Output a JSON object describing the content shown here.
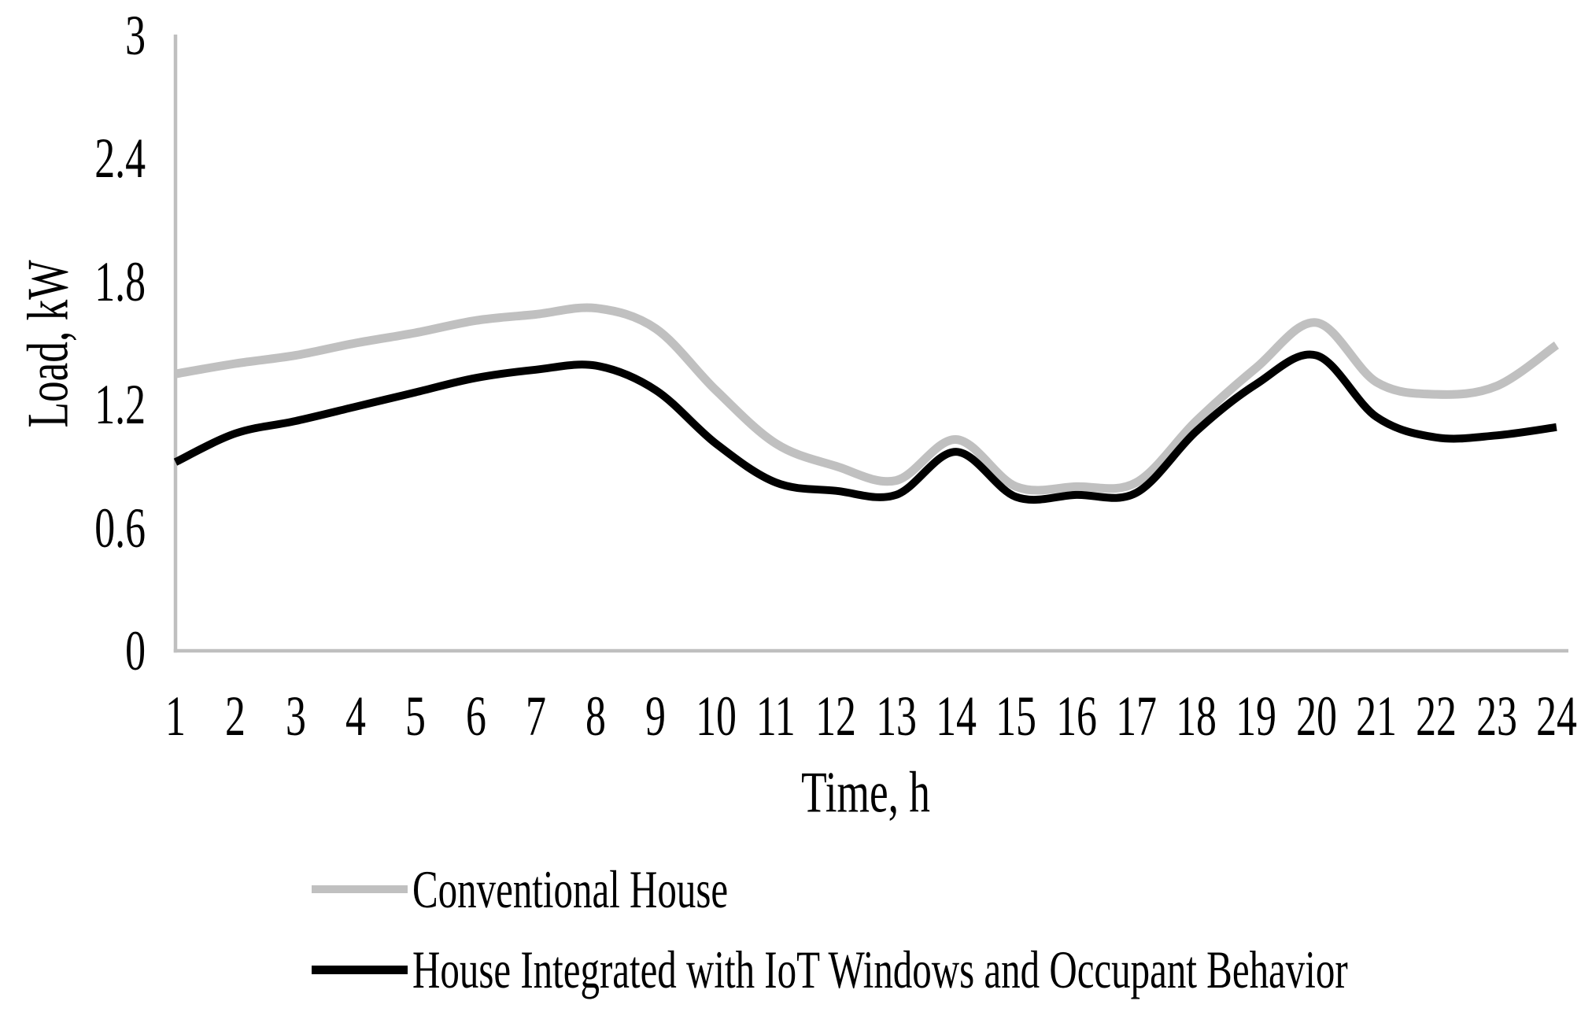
{
  "chart_data": {
    "type": "line",
    "title": "",
    "xlabel": "Time, h",
    "ylabel": "Load, kW",
    "x": [
      1,
      2,
      3,
      4,
      5,
      6,
      7,
      8,
      9,
      10,
      11,
      12,
      13,
      14,
      15,
      16,
      17,
      18,
      19,
      20,
      21,
      22,
      23,
      24
    ],
    "x_tick_labels": [
      "1",
      "2",
      "3",
      "4",
      "5",
      "6",
      "7",
      "8",
      "9",
      "10",
      "11",
      "12",
      "13",
      "14",
      "15",
      "16",
      "17",
      "18",
      "19",
      "20",
      "21",
      "22",
      "23",
      "24"
    ],
    "y_ticks": [
      0,
      0.6,
      1.2,
      1.8,
      2.4,
      3
    ],
    "y_tick_labels": [
      "0",
      "0.6",
      "1.2",
      "1.8",
      "2.4",
      "3"
    ],
    "xlim": [
      1,
      24
    ],
    "ylim": [
      0,
      3
    ],
    "grid": false,
    "tick_marks": false,
    "axis_color": "#bfbfbf",
    "text_color": "#000000",
    "background_color": "#ffffff",
    "legend_position": "bottom-left",
    "series": [
      {
        "name": "Conventional House",
        "color": "#c0c0c0",
        "line_width": 11,
        "values": [
          1.35,
          1.4,
          1.44,
          1.5,
          1.55,
          1.61,
          1.64,
          1.67,
          1.57,
          1.27,
          1.01,
          0.9,
          0.83,
          1.03,
          0.8,
          0.8,
          0.82,
          1.12,
          1.38,
          1.6,
          1.31,
          1.25,
          1.29,
          1.49
        ]
      },
      {
        "name": "House Integrated with IoT Windows and Occupant Behavior",
        "color": "#000000",
        "line_width": 10,
        "values": [
          0.92,
          1.06,
          1.12,
          1.19,
          1.26,
          1.33,
          1.37,
          1.39,
          1.27,
          1.01,
          0.82,
          0.78,
          0.76,
          0.97,
          0.75,
          0.76,
          0.77,
          1.07,
          1.3,
          1.44,
          1.14,
          1.04,
          1.05,
          1.09
        ]
      }
    ]
  },
  "legend": {
    "items": [
      {
        "label": "Conventional House",
        "swatch_color": "#c0c0c0",
        "swatch_height": 10
      },
      {
        "label": "House Integrated with IoT Windows and Occupant Behavior",
        "swatch_color": "#000000",
        "swatch_height": 11
      }
    ]
  }
}
